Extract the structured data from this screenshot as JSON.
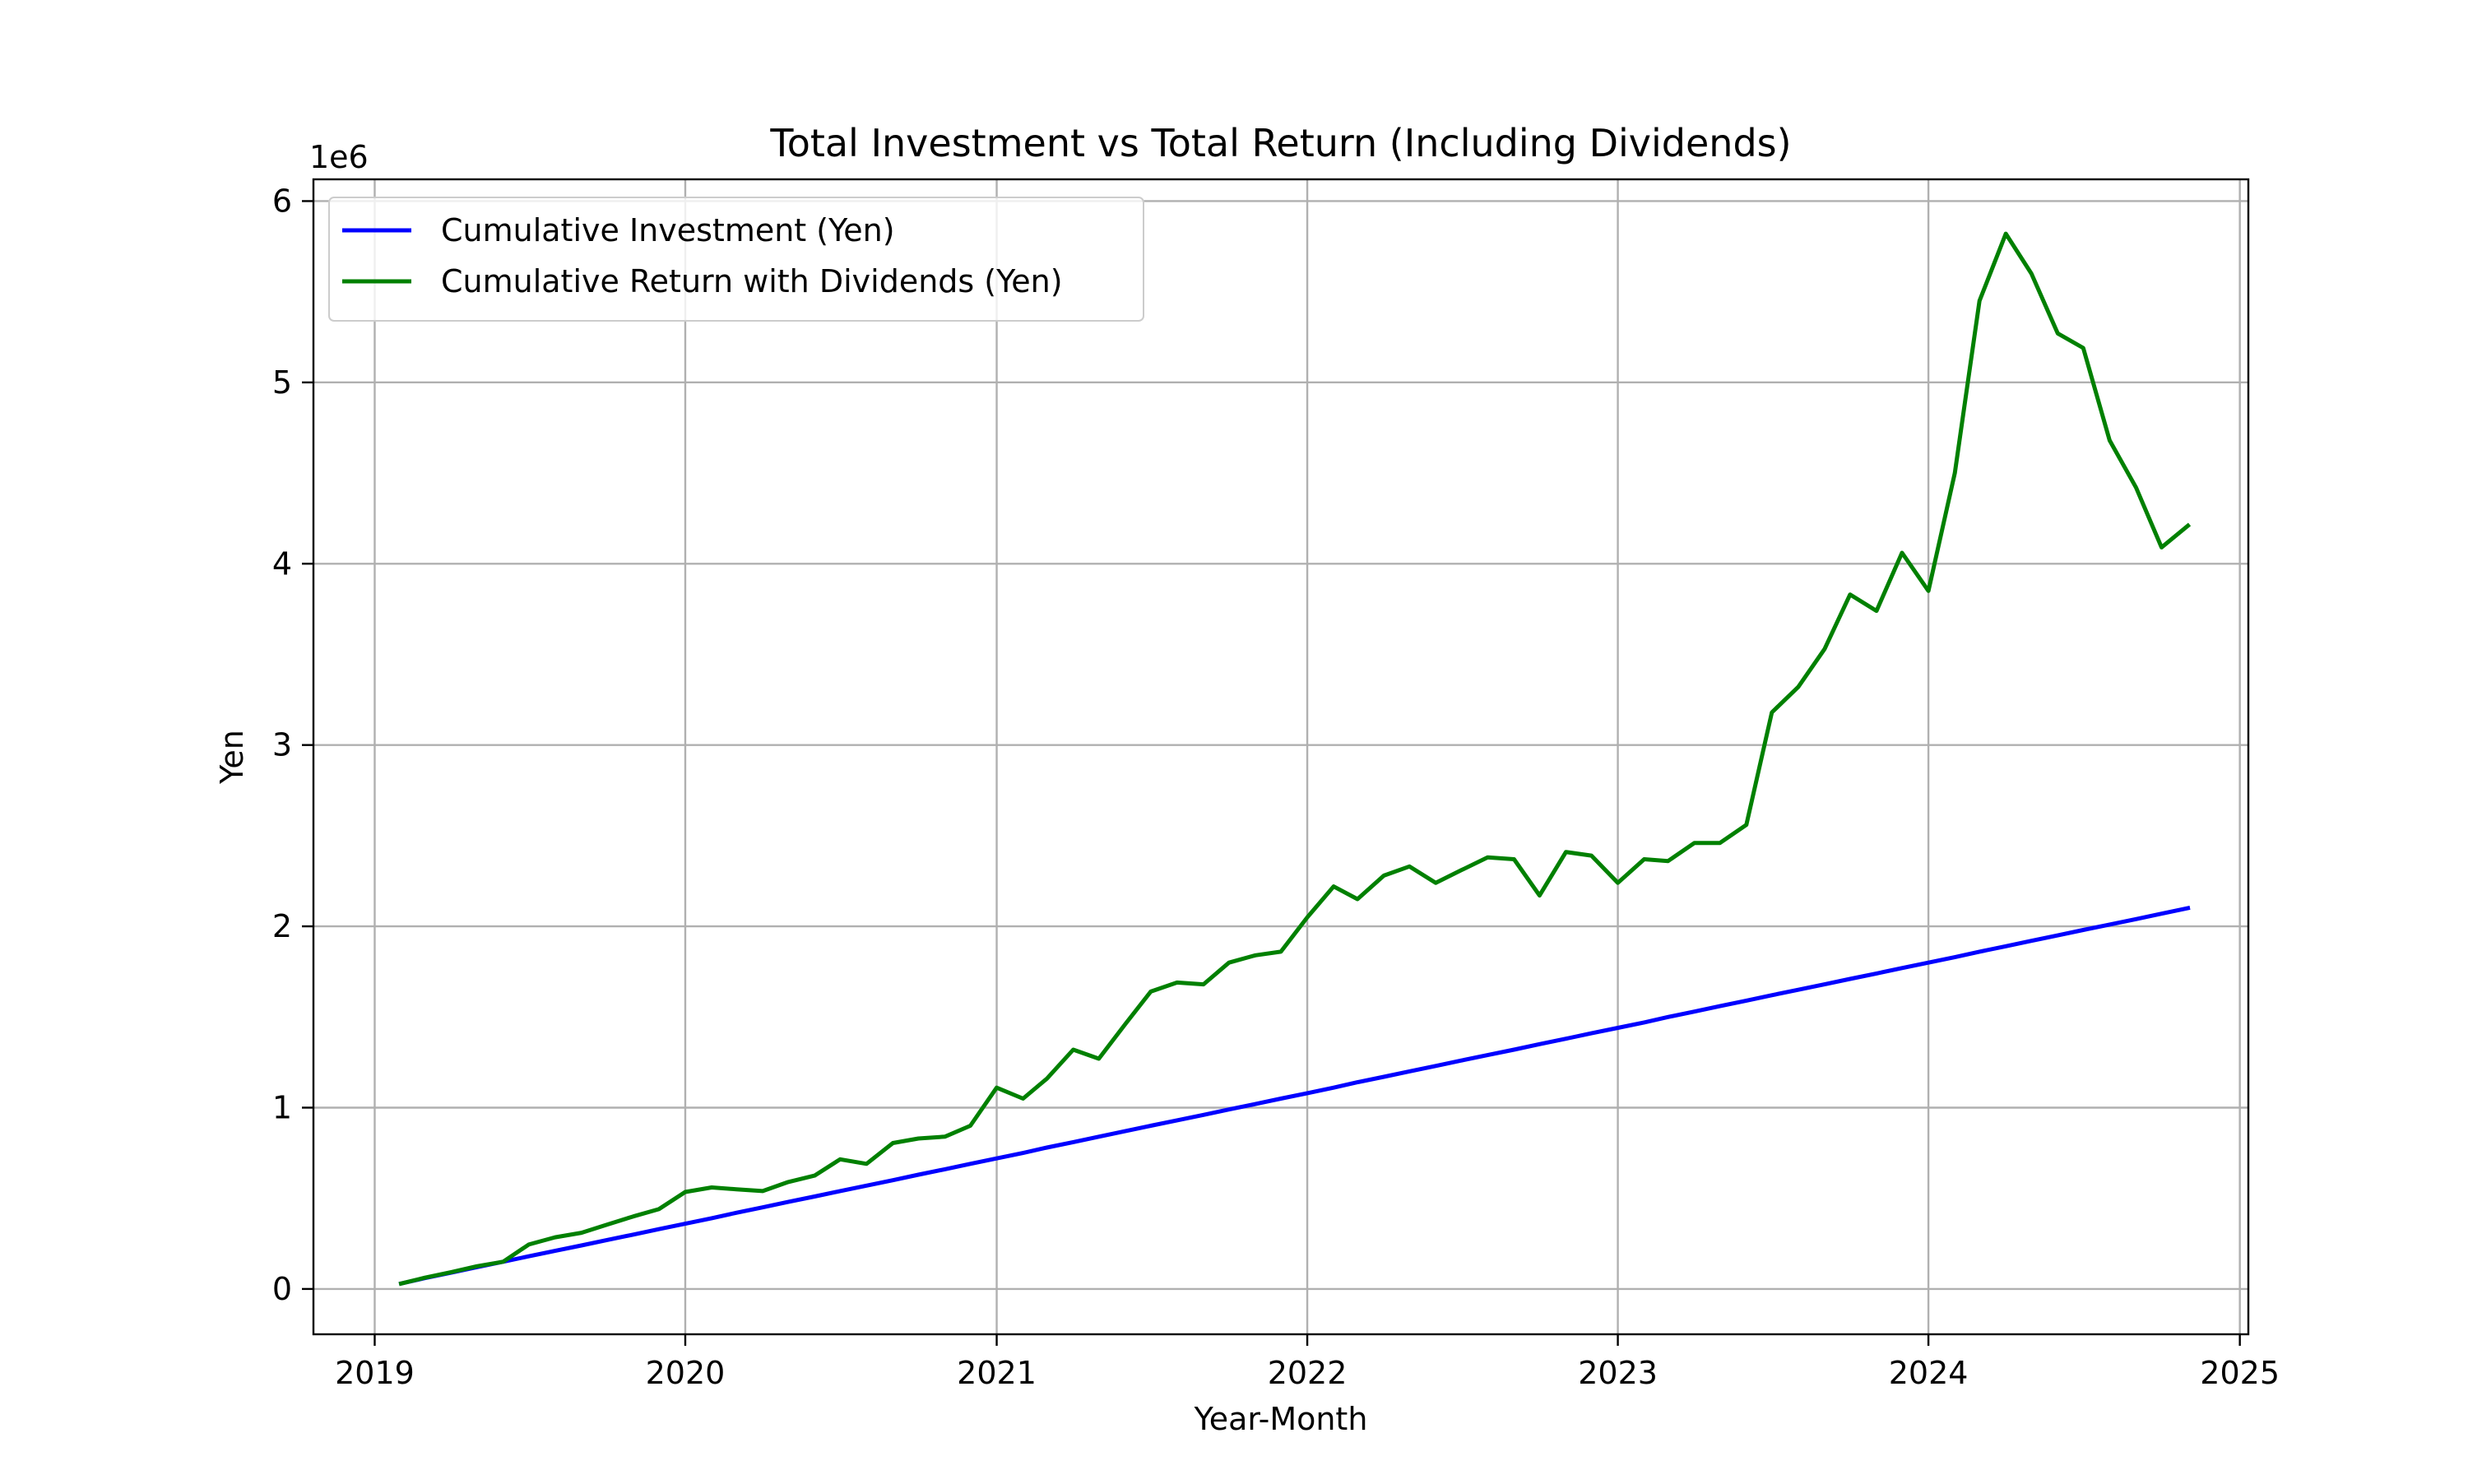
{
  "chart_data": {
    "type": "line",
    "title": "Total Investment vs Total Return (Including Dividends)",
    "xlabel": "Year-Month",
    "ylabel": "Yen",
    "y_offset_label": "1e6",
    "xlim": [
      "2018-10-21",
      "2025-01-11"
    ],
    "ylim": [
      -250000,
      6120000
    ],
    "x_ticks": [
      "2019-01-01",
      "2020-01-01",
      "2021-01-01",
      "2022-01-01",
      "2023-01-01",
      "2024-01-01",
      "2025-01-01"
    ],
    "x_tick_labels": [
      "2019",
      "2020",
      "2021",
      "2022",
      "2023",
      "2024",
      "2025"
    ],
    "y_ticks": [
      0,
      1000000,
      2000000,
      3000000,
      4000000,
      5000000,
      6000000
    ],
    "y_tick_labels": [
      "0",
      "1",
      "2",
      "3",
      "4",
      "5",
      "6"
    ],
    "grid": true,
    "legend_position": "top-left",
    "x": [
      "2019-02",
      "2019-03",
      "2019-04",
      "2019-05",
      "2019-06",
      "2019-07",
      "2019-08",
      "2019-09",
      "2019-10",
      "2019-11",
      "2019-12",
      "2020-01",
      "2020-02",
      "2020-03",
      "2020-04",
      "2020-05",
      "2020-06",
      "2020-07",
      "2020-08",
      "2020-09",
      "2020-10",
      "2020-11",
      "2020-12",
      "2021-01",
      "2021-02",
      "2021-03",
      "2021-04",
      "2021-05",
      "2021-06",
      "2021-07",
      "2021-08",
      "2021-09",
      "2021-10",
      "2021-11",
      "2021-12",
      "2022-01",
      "2022-02",
      "2022-03",
      "2022-04",
      "2022-05",
      "2022-06",
      "2022-07",
      "2022-08",
      "2022-09",
      "2022-10",
      "2022-11",
      "2022-12",
      "2023-01",
      "2023-02",
      "2023-03",
      "2023-04",
      "2023-05",
      "2023-06",
      "2023-07",
      "2023-08",
      "2023-09",
      "2023-10",
      "2023-11",
      "2023-12",
      "2024-01",
      "2024-02",
      "2024-03",
      "2024-04",
      "2024-05",
      "2024-06",
      "2024-07",
      "2024-08",
      "2024-09",
      "2024-10",
      "2024-11"
    ],
    "series": [
      {
        "name": "Cumulative Investment (Yen)",
        "color": "#0000ff",
        "values": [
          30000,
          60000,
          90000,
          120000,
          150000,
          180000,
          210000,
          240000,
          270000,
          300000,
          330000,
          360000,
          390000,
          420000,
          450000,
          480000,
          510000,
          540000,
          570000,
          600000,
          630000,
          660000,
          690000,
          720000,
          750000,
          780000,
          810000,
          840000,
          870000,
          900000,
          930000,
          960000,
          990000,
          1020000,
          1050000,
          1080000,
          1110000,
          1140000,
          1170000,
          1200000,
          1230000,
          1260000,
          1290000,
          1320000,
          1350000,
          1380000,
          1410000,
          1440000,
          1470000,
          1500000,
          1530000,
          1560000,
          1590000,
          1620000,
          1650000,
          1680000,
          1710000,
          1740000,
          1770000,
          1800000,
          1830000,
          1860000,
          1890000,
          1920000,
          1950000,
          1980000,
          2010000,
          2040000,
          2070000,
          2100000
        ]
      },
      {
        "name": "Cumulative Return with Dividends (Yen)",
        "color": "#008000",
        "values": [
          30000,
          62000,
          93000,
          125000,
          150000,
          245000,
          285000,
          310000,
          355000,
          400000,
          440000,
          535000,
          560000,
          550000,
          540000,
          590000,
          625000,
          715000,
          690000,
          805000,
          830000,
          840000,
          900000,
          1110000,
          1050000,
          1160000,
          1320000,
          1270000,
          1460000,
          1640000,
          1690000,
          1680000,
          1800000,
          1840000,
          1860000,
          2050000,
          2220000,
          2150000,
          2280000,
          2330000,
          2240000,
          2310000,
          2380000,
          2370000,
          2170000,
          2410000,
          2390000,
          2240000,
          2370000,
          2360000,
          2460000,
          2460000,
          2560000,
          3180000,
          3320000,
          3530000,
          3830000,
          3740000,
          4060000,
          3850000,
          4500000,
          5450000,
          5820000,
          5600000,
          5270000,
          5190000,
          4680000,
          4420000,
          4090000,
          4210000
        ]
      }
    ]
  }
}
